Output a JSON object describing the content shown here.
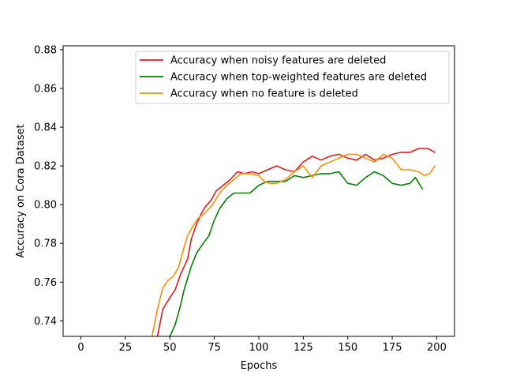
{
  "chart_data": {
    "type": "line",
    "title": "",
    "xlabel": "Epochs",
    "ylabel": "Accuracy on Cora Dataset",
    "xlim": [
      -10,
      210
    ],
    "ylim": [
      0.732,
      0.882
    ],
    "xticks": [
      0,
      25,
      50,
      75,
      100,
      125,
      150,
      175,
      200
    ],
    "yticks": [
      0.74,
      0.76,
      0.78,
      0.8,
      0.82,
      0.84,
      0.86,
      0.88
    ],
    "ytick_labels": [
      "0.74",
      "0.76",
      "0.78",
      "0.80",
      "0.82",
      "0.84",
      "0.86",
      "0.88"
    ],
    "legend": {
      "position": "upper right"
    },
    "series": [
      {
        "name": "Accuracy when noisy features are deleted",
        "color": "#e41a1c",
        "points": [
          [
            43,
            0.732
          ],
          [
            46,
            0.746
          ],
          [
            50,
            0.752
          ],
          [
            53,
            0.756
          ],
          [
            56,
            0.764
          ],
          [
            58,
            0.768
          ],
          [
            60,
            0.772
          ],
          [
            62,
            0.782
          ],
          [
            65,
            0.79
          ],
          [
            68,
            0.796
          ],
          [
            70,
            0.799
          ],
          [
            73,
            0.802
          ],
          [
            76,
            0.807
          ],
          [
            80,
            0.81
          ],
          [
            84,
            0.813
          ],
          [
            88,
            0.817
          ],
          [
            92,
            0.816
          ],
          [
            96,
            0.817
          ],
          [
            100,
            0.816
          ],
          [
            105,
            0.818
          ],
          [
            110,
            0.82
          ],
          [
            115,
            0.818
          ],
          [
            120,
            0.817
          ],
          [
            125,
            0.822
          ],
          [
            130,
            0.825
          ],
          [
            135,
            0.823
          ],
          [
            140,
            0.825
          ],
          [
            145,
            0.826
          ],
          [
            150,
            0.824
          ],
          [
            155,
            0.823
          ],
          [
            160,
            0.826
          ],
          [
            165,
            0.823
          ],
          [
            170,
            0.824
          ],
          [
            175,
            0.826
          ],
          [
            180,
            0.827
          ],
          [
            185,
            0.827
          ],
          [
            190,
            0.829
          ],
          [
            195,
            0.829
          ],
          [
            199,
            0.827
          ]
        ]
      },
      {
        "name": "Accuracy when top-weighted features are deleted",
        "color": "#008000",
        "points": [
          [
            50,
            0.732
          ],
          [
            53,
            0.738
          ],
          [
            56,
            0.748
          ],
          [
            58,
            0.756
          ],
          [
            60,
            0.762
          ],
          [
            62,
            0.768
          ],
          [
            65,
            0.775
          ],
          [
            68,
            0.779
          ],
          [
            72,
            0.784
          ],
          [
            75,
            0.792
          ],
          [
            78,
            0.798
          ],
          [
            82,
            0.803
          ],
          [
            86,
            0.806
          ],
          [
            90,
            0.806
          ],
          [
            95,
            0.806
          ],
          [
            100,
            0.81
          ],
          [
            105,
            0.812
          ],
          [
            110,
            0.812
          ],
          [
            115,
            0.812
          ],
          [
            120,
            0.815
          ],
          [
            125,
            0.814
          ],
          [
            130,
            0.815
          ],
          [
            135,
            0.816
          ],
          [
            140,
            0.816
          ],
          [
            145,
            0.817
          ],
          [
            150,
            0.811
          ],
          [
            155,
            0.81
          ],
          [
            160,
            0.814
          ],
          [
            165,
            0.817
          ],
          [
            170,
            0.815
          ],
          [
            175,
            0.811
          ],
          [
            180,
            0.81
          ],
          [
            185,
            0.811
          ],
          [
            188,
            0.814
          ],
          [
            190,
            0.811
          ],
          [
            192,
            0.808
          ]
        ]
      },
      {
        "name": "Accuracy when no feature is deleted",
        "color": "#ff8c00",
        "points": [
          [
            40,
            0.732
          ],
          [
            43,
            0.746
          ],
          [
            46,
            0.757
          ],
          [
            49,
            0.761
          ],
          [
            52,
            0.763
          ],
          [
            55,
            0.768
          ],
          [
            58,
            0.778
          ],
          [
            60,
            0.784
          ],
          [
            63,
            0.789
          ],
          [
            66,
            0.793
          ],
          [
            70,
            0.796
          ],
          [
            74,
            0.8
          ],
          [
            78,
            0.806
          ],
          [
            82,
            0.81
          ],
          [
            86,
            0.813
          ],
          [
            90,
            0.816
          ],
          [
            95,
            0.816
          ],
          [
            100,
            0.815
          ],
          [
            103,
            0.812
          ],
          [
            106,
            0.811
          ],
          [
            110,
            0.811
          ],
          [
            115,
            0.813
          ],
          [
            120,
            0.817
          ],
          [
            125,
            0.82
          ],
          [
            130,
            0.814
          ],
          [
            135,
            0.82
          ],
          [
            140,
            0.822
          ],
          [
            145,
            0.824
          ],
          [
            150,
            0.826
          ],
          [
            155,
            0.826
          ],
          [
            160,
            0.824
          ],
          [
            165,
            0.822
          ],
          [
            170,
            0.826
          ],
          [
            175,
            0.824
          ],
          [
            180,
            0.818
          ],
          [
            185,
            0.818
          ],
          [
            190,
            0.817
          ],
          [
            193,
            0.815
          ],
          [
            196,
            0.816
          ],
          [
            199,
            0.82
          ]
        ]
      }
    ]
  }
}
